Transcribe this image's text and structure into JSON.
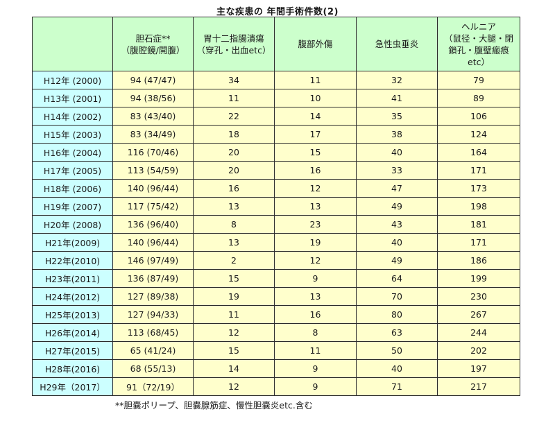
{
  "title": "主な疾患の 年間手術件数(2)",
  "headers": {
    "c0": "",
    "c1": [
      "胆石症**",
      "（腹腔鏡/開腹）"
    ],
    "c2": [
      "胃十二指腸潰瘍",
      "（穿孔・出血etc）"
    ],
    "c3": [
      "腹部外傷"
    ],
    "c4": [
      "急性虫垂炎"
    ],
    "c5": [
      "ヘルニア",
      "（鼠径・大腿・閉",
      "鎖孔・腹壁瘢痕",
      "etc）"
    ]
  },
  "rows": [
    {
      "year": "H12年 (2000)",
      "gall": "94 (47/47)",
      "ulcer": "34",
      "trauma": "11",
      "appendicitis": "32",
      "hernia": "79"
    },
    {
      "year": "H13年 (2001)",
      "gall": "94 (38/56)",
      "ulcer": "11",
      "trauma": "10",
      "appendicitis": "41",
      "hernia": "89"
    },
    {
      "year": "H14年 (2002)",
      "gall": "83 (43/40)",
      "ulcer": "22",
      "trauma": "14",
      "appendicitis": "35",
      "hernia": "106"
    },
    {
      "year": "H15年 (2003)",
      "gall": "83 (34/49)",
      "ulcer": "18",
      "trauma": "17",
      "appendicitis": "38",
      "hernia": "124"
    },
    {
      "year": "H16年 (2004)",
      "gall": "116 (70/46)",
      "ulcer": "20",
      "trauma": "15",
      "appendicitis": "40",
      "hernia": "164"
    },
    {
      "year": "H17年 (2005)",
      "gall": "113 (54/59)",
      "ulcer": "20",
      "trauma": "16",
      "appendicitis": "33",
      "hernia": "171"
    },
    {
      "year": "H18年 (2006)",
      "gall": "140 (96/44)",
      "ulcer": "16",
      "trauma": "12",
      "appendicitis": "47",
      "hernia": "173"
    },
    {
      "year": "H19年 (2007)",
      "gall": "117 (75/42)",
      "ulcer": "13",
      "trauma": "13",
      "appendicitis": "49",
      "hernia": "198"
    },
    {
      "year": "H20年 (2008)",
      "gall": "136 (96/40)",
      "ulcer": "8",
      "trauma": "23",
      "appendicitis": "43",
      "hernia": "181"
    },
    {
      "year": "H21年(2009)",
      "gall": "140 (96/44)",
      "ulcer": "13",
      "trauma": "19",
      "appendicitis": "40",
      "hernia": "171"
    },
    {
      "year": "H22年(2010)",
      "gall": "146 (97/49)",
      "ulcer": "2",
      "trauma": "12",
      "appendicitis": "49",
      "hernia": "186"
    },
    {
      "year": "H23年(2011)",
      "gall": "136 (87/49)",
      "ulcer": "15",
      "trauma": "9",
      "appendicitis": "64",
      "hernia": "199"
    },
    {
      "year": "H24年(2012)",
      "gall": "127 (89/38)",
      "ulcer": "19",
      "trauma": "13",
      "appendicitis": "70",
      "hernia": "230"
    },
    {
      "year": "H25年(2013)",
      "gall": "127 (94/33)",
      "ulcer": "11",
      "trauma": "16",
      "appendicitis": "80",
      "hernia": "267"
    },
    {
      "year": "H26年(2014)",
      "gall": "113 (68/45)",
      "ulcer": "12",
      "trauma": "8",
      "appendicitis": "63",
      "hernia": "244"
    },
    {
      "year": "H27年(2015)",
      "gall": "65 (41/24)",
      "ulcer": "15",
      "trauma": "11",
      "appendicitis": "50",
      "hernia": "202"
    },
    {
      "year": "H28年(2016)",
      "gall": "68 (55/13)",
      "ulcer": "14",
      "trauma": "9",
      "appendicitis": "40",
      "hernia": "197"
    },
    {
      "year": "H29年（2017）",
      "gall": "91（72/19）",
      "ulcer": "12",
      "trauma": "9",
      "appendicitis": "71",
      "hernia": "217"
    }
  ],
  "footnote": "**胆嚢ポリープ、胆嚢腺筋症、慢性胆嚢炎etc.含む",
  "colors": {
    "header_bg": "#ccffcc",
    "year_bg": "#ccffff",
    "value_bg": "#ffffcc",
    "border": "#2b2b2b"
  }
}
